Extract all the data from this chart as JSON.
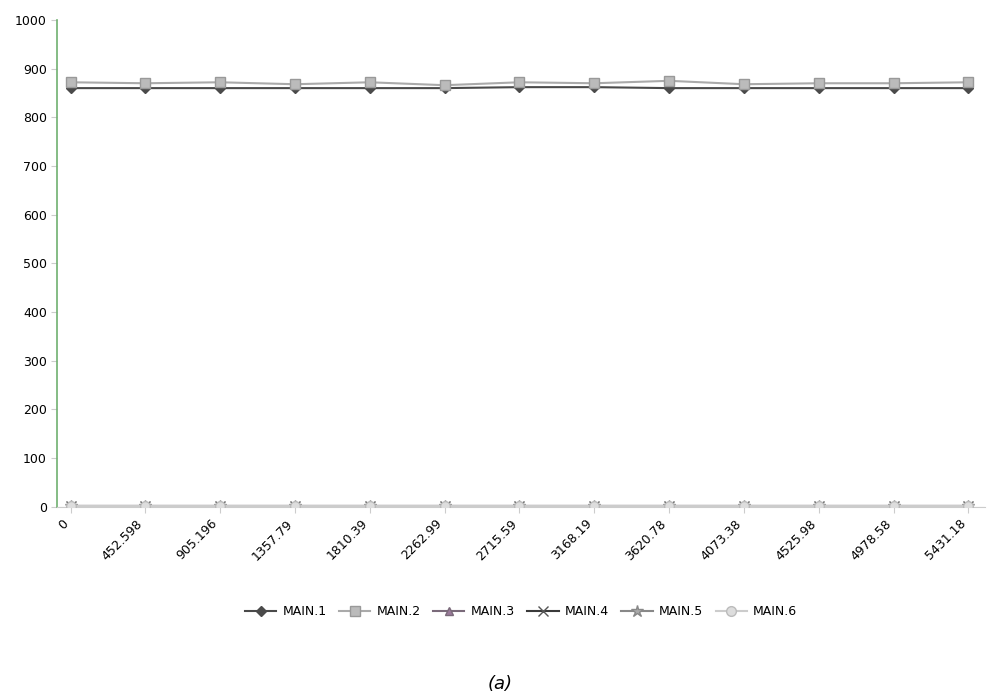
{
  "x_labels": [
    "0",
    "452.598",
    "905.196",
    "1357.79",
    "1810.39",
    "2262.99",
    "2715.59",
    "3168.19",
    "3620.78",
    "4073.38",
    "4525.98",
    "4978.58",
    "5431.18"
  ],
  "x_values": [
    0,
    452.598,
    905.196,
    1357.79,
    1810.39,
    2262.99,
    2715.59,
    3168.19,
    3620.78,
    4073.38,
    4525.98,
    4978.58,
    5431.18
  ],
  "series": [
    {
      "label": "MAIN.1",
      "color": "#4a4a4a",
      "linewidth": 1.5,
      "marker": "D",
      "marker_size": 5,
      "marker_color": "#4a4a4a",
      "marker_edge_color": "#4a4a4a",
      "values": [
        860,
        860,
        860,
        860,
        860,
        860,
        862,
        862,
        860,
        860,
        860,
        860,
        860
      ]
    },
    {
      "label": "MAIN.2",
      "color": "#aaaaaa",
      "linewidth": 1.5,
      "marker": "s",
      "marker_size": 7,
      "marker_color": "#bbbbbb",
      "marker_edge_color": "#999999",
      "values": [
        872,
        870,
        872,
        868,
        872,
        866,
        872,
        870,
        875,
        868,
        870,
        870,
        872
      ]
    },
    {
      "label": "MAIN.3",
      "color": "#7a6a7a",
      "linewidth": 1.5,
      "marker": "^",
      "marker_size": 6,
      "marker_color": "#9a7a9a",
      "marker_edge_color": "#7a6a7a",
      "values": [
        1,
        1,
        1,
        1,
        1,
        1,
        1,
        1,
        1,
        1,
        1,
        1,
        1
      ]
    },
    {
      "label": "MAIN.4",
      "color": "#3a3a3a",
      "linewidth": 1.5,
      "marker": "x",
      "marker_size": 7,
      "marker_color": "#555555",
      "marker_edge_color": "#555555",
      "values": [
        1,
        1,
        1,
        1,
        1,
        1,
        1,
        1,
        1,
        1,
        1,
        1,
        1
      ]
    },
    {
      "label": "MAIN.5",
      "color": "#888888",
      "linewidth": 1.5,
      "marker": "*",
      "marker_size": 9,
      "marker_color": "#aaaaaa",
      "marker_edge_color": "#888888",
      "values": [
        1,
        1,
        1,
        1,
        1,
        1,
        1,
        1,
        1,
        1,
        1,
        1,
        1
      ]
    },
    {
      "label": "MAIN.6",
      "color": "#cccccc",
      "linewidth": 1.5,
      "marker": "o",
      "marker_size": 7,
      "marker_color": "#dddddd",
      "marker_edge_color": "#bbbbbb",
      "values": [
        1,
        1,
        1,
        1,
        1,
        1,
        1,
        1,
        1,
        1,
        1,
        1,
        1
      ]
    }
  ],
  "ylim": [
    0,
    1000
  ],
  "yticks": [
    0,
    100,
    200,
    300,
    400,
    500,
    600,
    700,
    800,
    900,
    1000
  ],
  "xlabel": "(a)",
  "background_color": "#ffffff",
  "left_spine_color": "#70b070",
  "other_spine_color": "#cccccc",
  "legend_ncol": 6,
  "figsize": [
    10.0,
    6.96
  ],
  "dpi": 100
}
